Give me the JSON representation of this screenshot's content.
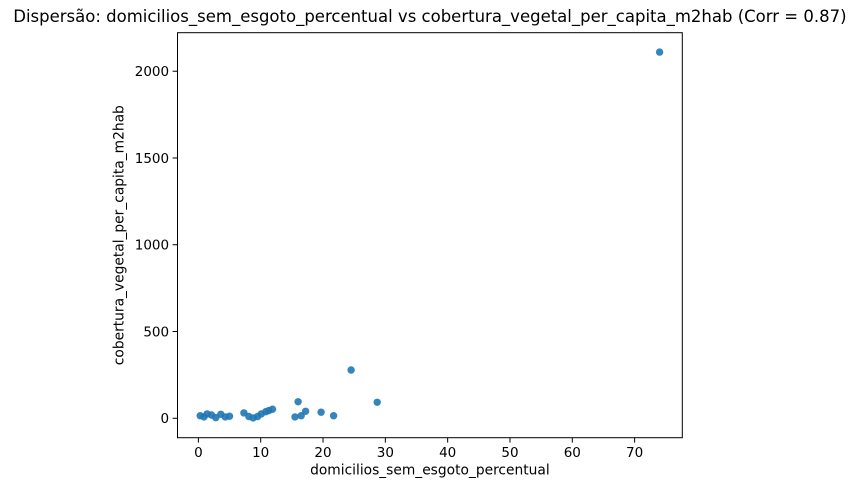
{
  "chart_data": {
    "type": "scatter",
    "title": "Dispersão: domicilios_sem_esgoto_percentual vs cobertura_vegetal_per_capita_m2hab (Corr = 0.87)",
    "xlabel": "domicilios_sem_esgoto_percentual",
    "ylabel": "cobertura_vegetal_per_capita_m2hab",
    "correlation": 0.87,
    "x_ticks": [
      0,
      10,
      20,
      30,
      40,
      50,
      60,
      70
    ],
    "y_ticks": [
      0,
      500,
      1000,
      1500,
      2000
    ],
    "xlim": [
      -3.35,
      77.65
    ],
    "ylim": [
      -112,
      2222
    ],
    "grid": false,
    "legend": false,
    "background_color": "#ffffff",
    "marker_color": "#1f77b4",
    "spine_color": "#000000",
    "points": [
      [
        0.3,
        15
      ],
      [
        0.9,
        8
      ],
      [
        1.4,
        25
      ],
      [
        2.1,
        19
      ],
      [
        2.8,
        4
      ],
      [
        3.6,
        23
      ],
      [
        4.3,
        8
      ],
      [
        5.0,
        12
      ],
      [
        7.3,
        31
      ],
      [
        8.1,
        10
      ],
      [
        8.8,
        2
      ],
      [
        9.5,
        10
      ],
      [
        10.1,
        25
      ],
      [
        10.8,
        38
      ],
      [
        11.3,
        44
      ],
      [
        11.9,
        52
      ],
      [
        15.5,
        8
      ],
      [
        16.0,
        95
      ],
      [
        16.5,
        15
      ],
      [
        17.2,
        40
      ],
      [
        19.7,
        35
      ],
      [
        21.7,
        15
      ],
      [
        24.5,
        278
      ],
      [
        28.7,
        92
      ],
      [
        74.0,
        2110
      ]
    ]
  }
}
